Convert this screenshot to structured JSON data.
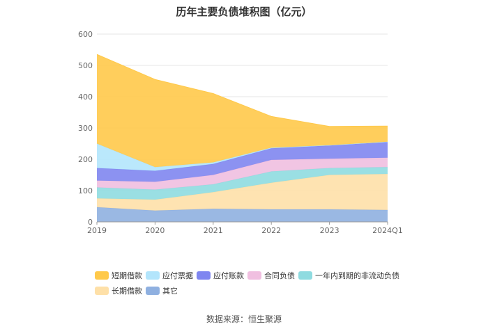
{
  "chart_data": {
    "type": "area",
    "title": "历年主要负债堆积图（亿元）",
    "x": [
      "2019",
      "2020",
      "2021",
      "2022",
      "2023",
      "2024Q1"
    ],
    "ylim": [
      0,
      600
    ],
    "yticks": [
      "0",
      "100",
      "200",
      "300",
      "400",
      "500",
      "600"
    ],
    "grid": true,
    "legend_position": "bottom",
    "stack_order": [
      "其它",
      "长期借款",
      "一年内到期的非流动负债",
      "合同负债",
      "应付账款",
      "应付票据",
      "短期借款"
    ],
    "series": [
      {
        "name": "短期借款",
        "color": "#ffc94a",
        "values": [
          285,
          280,
          220,
          100,
          60,
          50
        ]
      },
      {
        "name": "应付票据",
        "color": "#b3e5fc",
        "values": [
          78,
          12,
          5,
          2,
          1,
          1
        ]
      },
      {
        "name": "应付账款",
        "color": "#7f86f0",
        "values": [
          40,
          35,
          35,
          37,
          42,
          50
        ]
      },
      {
        "name": "合同负债",
        "color": "#f0bfe0",
        "values": [
          22,
          25,
          30,
          37,
          30,
          30
        ]
      },
      {
        "name": "一年内到期的非流动负债",
        "color": "#8fdbe0",
        "values": [
          35,
          32,
          25,
          36,
          22,
          22
        ]
      },
      {
        "name": "长期借款",
        "color": "#fee0a8",
        "values": [
          28,
          35,
          53,
          85,
          110,
          115
        ]
      },
      {
        "name": "其它",
        "color": "#8fb0e0",
        "values": [
          47,
          36,
          42,
          40,
          40,
          38
        ]
      }
    ]
  },
  "legend": {
    "items": [
      {
        "label": "短期借款",
        "color": "#ffc94a"
      },
      {
        "label": "应付票据",
        "color": "#b3e5fc"
      },
      {
        "label": "应付账款",
        "color": "#7f86f0"
      },
      {
        "label": "合同负债",
        "color": "#f0bfe0"
      },
      {
        "label": "一年内到期的非流动负债",
        "color": "#8fdbe0"
      },
      {
        "label": "长期借款",
        "color": "#fee0a8"
      },
      {
        "label": "其它",
        "color": "#8fb0e0"
      }
    ]
  },
  "source": "数据来源：恒生聚源"
}
